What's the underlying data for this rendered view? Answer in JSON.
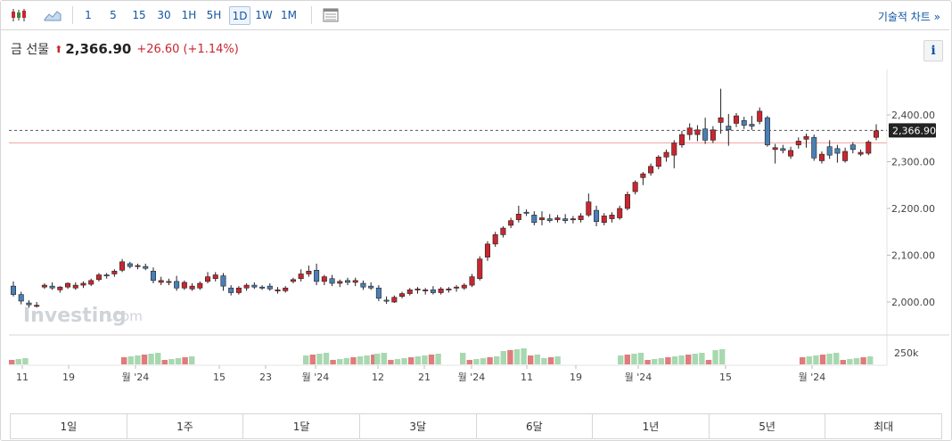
{
  "toolbar": {
    "icons": [
      "candlestick-icon",
      "area-chart-icon",
      "calendar-grid-icon"
    ],
    "intervals": [
      "1",
      "5",
      "15",
      "30",
      "1H",
      "5H",
      "1D",
      "1W",
      "1M"
    ],
    "active_interval": "1D",
    "technical_chart_label": "기술적 차트 »"
  },
  "header": {
    "name": "금 선물",
    "arrow": "⬆",
    "price": "2,366.90",
    "change": "+26.60",
    "change_pct": "(+1.14%)",
    "info_label": "i"
  },
  "watermark": {
    "brand": "Investing",
    "suffix": ".com"
  },
  "colors": {
    "up": "#c9262f",
    "down": "#4a7fb5",
    "vol_up": "#a8d8b0",
    "vol_down": "#e07b7b",
    "accent": "#1256a0"
  },
  "range_buttons": [
    "1일",
    "1주",
    "1달",
    "3달",
    "6달",
    "1년",
    "5년",
    "최대"
  ],
  "chart_data": {
    "type": "candlestick",
    "y_ticks": [
      "2,400.00",
      "2,300.00",
      "2,200.00",
      "2,100.00",
      "2,000.00"
    ],
    "y_tick_values": [
      2400,
      2300,
      2200,
      2100,
      2000
    ],
    "ylim": [
      1960,
      2440
    ],
    "current_price": 2366.9,
    "current_price_label": "2,366.90",
    "prev_close": 2340.3,
    "volume_tick": "250k",
    "x_tick_labels": [
      "11",
      "19",
      "월 '24",
      "15",
      "23",
      "월 '24",
      "12",
      "21",
      "월 '24",
      "11",
      "19",
      "월 '24",
      "15",
      "월 '24"
    ],
    "candles": [
      [
        2034,
        2044,
        2012,
        2016
      ],
      [
        2016,
        2022,
        1995,
        2002
      ],
      [
        1998,
        2004,
        1988,
        1994
      ],
      [
        1992,
        2000,
        1988,
        1993
      ],
      [
        2032,
        2040,
        2028,
        2036
      ],
      [
        2034,
        2042,
        2026,
        2030
      ],
      [
        2026,
        2034,
        2020,
        2032
      ],
      [
        2032,
        2042,
        2028,
        2040
      ],
      [
        2030,
        2042,
        2026,
        2036
      ],
      [
        2036,
        2044,
        2030,
        2040
      ],
      [
        2038,
        2050,
        2034,
        2046
      ],
      [
        2048,
        2062,
        2044,
        2058
      ],
      [
        2058,
        2062,
        2050,
        2056
      ],
      [
        2060,
        2070,
        2054,
        2066
      ],
      [
        2068,
        2092,
        2064,
        2086
      ],
      [
        2082,
        2086,
        2072,
        2076
      ],
      [
        2076,
        2082,
        2070,
        2078
      ],
      [
        2076,
        2082,
        2068,
        2072
      ],
      [
        2066,
        2074,
        2040,
        2046
      ],
      [
        2042,
        2054,
        2036,
        2046
      ],
      [
        2044,
        2050,
        2036,
        2044
      ],
      [
        2044,
        2056,
        2024,
        2030
      ],
      [
        2030,
        2046,
        2026,
        2042
      ],
      [
        2028,
        2040,
        2024,
        2034
      ],
      [
        2030,
        2044,
        2026,
        2040
      ],
      [
        2044,
        2064,
        2040,
        2054
      ],
      [
        2050,
        2064,
        2044,
        2058
      ],
      [
        2056,
        2062,
        2024,
        2034
      ],
      [
        2030,
        2036,
        2014,
        2020
      ],
      [
        2020,
        2034,
        2016,
        2030
      ],
      [
        2030,
        2040,
        2024,
        2036
      ],
      [
        2036,
        2042,
        2028,
        2032
      ],
      [
        2032,
        2036,
        2026,
        2030
      ],
      [
        2034,
        2040,
        2024,
        2028
      ],
      [
        2024,
        2032,
        2018,
        2026
      ],
      [
        2024,
        2034,
        2020,
        2030
      ],
      [
        2044,
        2052,
        2040,
        2048
      ],
      [
        2050,
        2070,
        2044,
        2060
      ],
      [
        2060,
        2078,
        2054,
        2066
      ],
      [
        2068,
        2082,
        2036,
        2044
      ],
      [
        2044,
        2058,
        2036,
        2054
      ],
      [
        2050,
        2058,
        2034,
        2040
      ],
      [
        2040,
        2048,
        2032,
        2044
      ],
      [
        2046,
        2052,
        2036,
        2042
      ],
      [
        2042,
        2052,
        2034,
        2046
      ],
      [
        2040,
        2046,
        2026,
        2032
      ],
      [
        2034,
        2042,
        2026,
        2030
      ],
      [
        2030,
        2036,
        2002,
        2008
      ],
      [
        2004,
        2012,
        1996,
        2002
      ],
      [
        2000,
        2014,
        1998,
        2010
      ],
      [
        2012,
        2022,
        2008,
        2018
      ],
      [
        2018,
        2030,
        2014,
        2026
      ],
      [
        2026,
        2032,
        2018,
        2028
      ],
      [
        2024,
        2030,
        2016,
        2026
      ],
      [
        2026,
        2034,
        2016,
        2020
      ],
      [
        2020,
        2032,
        2016,
        2028
      ],
      [
        2026,
        2032,
        2020,
        2028
      ],
      [
        2030,
        2036,
        2022,
        2032
      ],
      [
        2030,
        2040,
        2026,
        2036
      ],
      [
        2036,
        2060,
        2032,
        2054
      ],
      [
        2050,
        2098,
        2046,
        2092
      ],
      [
        2096,
        2130,
        2088,
        2124
      ],
      [
        2124,
        2150,
        2118,
        2144
      ],
      [
        2144,
        2162,
        2138,
        2158
      ],
      [
        2164,
        2180,
        2158,
        2174
      ],
      [
        2176,
        2206,
        2170,
        2188
      ],
      [
        2192,
        2198,
        2184,
        2190
      ],
      [
        2186,
        2194,
        2164,
        2170
      ],
      [
        2176,
        2194,
        2164,
        2180
      ],
      [
        2178,
        2188,
        2170,
        2174
      ],
      [
        2176,
        2186,
        2170,
        2180
      ],
      [
        2178,
        2188,
        2168,
        2174
      ],
      [
        2176,
        2184,
        2168,
        2178
      ],
      [
        2176,
        2190,
        2170,
        2184
      ],
      [
        2186,
        2232,
        2182,
        2214
      ],
      [
        2196,
        2206,
        2162,
        2172
      ],
      [
        2170,
        2190,
        2164,
        2184
      ],
      [
        2178,
        2192,
        2170,
        2186
      ],
      [
        2180,
        2206,
        2176,
        2200
      ],
      [
        2200,
        2236,
        2196,
        2230
      ],
      [
        2236,
        2260,
        2230,
        2256
      ],
      [
        2266,
        2278,
        2250,
        2274
      ],
      [
        2276,
        2296,
        2270,
        2290
      ],
      [
        2290,
        2314,
        2284,
        2310
      ],
      [
        2310,
        2326,
        2300,
        2320
      ],
      [
        2314,
        2346,
        2286,
        2340
      ],
      [
        2336,
        2366,
        2330,
        2358
      ],
      [
        2358,
        2382,
        2346,
        2372
      ],
      [
        2358,
        2378,
        2344,
        2368
      ],
      [
        2370,
        2394,
        2338,
        2346
      ],
      [
        2346,
        2376,
        2340,
        2368
      ],
      [
        2384,
        2456,
        2360,
        2394
      ],
      [
        2376,
        2402,
        2334,
        2368
      ],
      [
        2382,
        2404,
        2374,
        2398
      ],
      [
        2388,
        2396,
        2370,
        2378
      ],
      [
        2380,
        2398,
        2368,
        2376
      ],
      [
        2386,
        2416,
        2380,
        2408
      ],
      [
        2394,
        2398,
        2332,
        2336
      ],
      [
        2326,
        2338,
        2296,
        2330
      ],
      [
        2328,
        2336,
        2318,
        2324
      ],
      [
        2312,
        2332,
        2306,
        2324
      ],
      [
        2336,
        2352,
        2328,
        2344
      ],
      [
        2348,
        2360,
        2330,
        2354
      ],
      [
        2352,
        2358,
        2302,
        2308
      ],
      [
        2302,
        2322,
        2296,
        2316
      ],
      [
        2332,
        2346,
        2306,
        2314
      ],
      [
        2328,
        2336,
        2298,
        2318
      ],
      [
        2302,
        2330,
        2298,
        2322
      ],
      [
        2336,
        2342,
        2318,
        2326
      ],
      [
        2316,
        2326,
        2312,
        2320
      ],
      [
        2318,
        2346,
        2314,
        2342
      ],
      [
        2352,
        2380,
        2346,
        2366
      ]
    ],
    "volume_bars": [
      [
        12,
        "u"
      ],
      [
        10,
        "u"
      ],
      [
        8,
        "d"
      ],
      [
        11,
        "d"
      ],
      [
        10,
        "d"
      ],
      [
        9,
        "d"
      ],
      [
        11,
        "d"
      ],
      [
        10,
        "d"
      ],
      [
        9,
        "d"
      ],
      [
        8,
        "d"
      ]
    ]
  }
}
